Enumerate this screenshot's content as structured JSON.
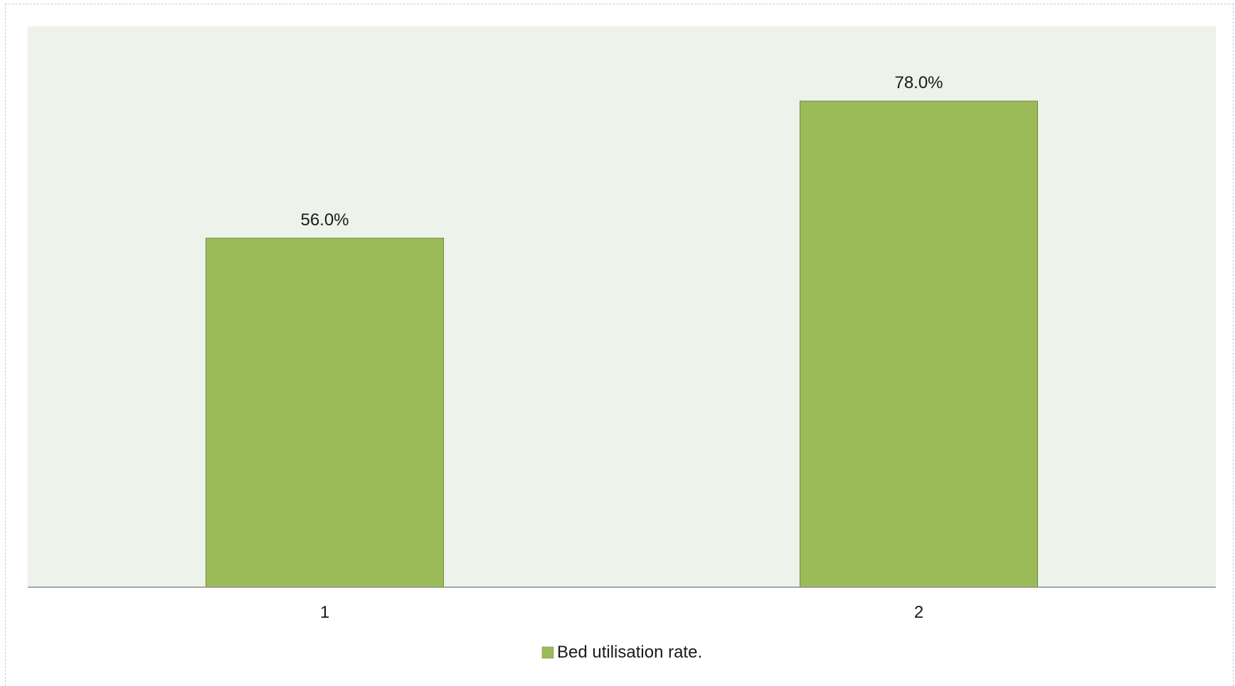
{
  "chart_data": {
    "type": "bar",
    "categories": [
      "1",
      "2"
    ],
    "series": [
      {
        "name": "Bed utilisation rate.",
        "values": [
          56.0,
          78.0
        ],
        "data_labels": [
          "56.0%",
          "78.0%"
        ],
        "color": "#9bbb59"
      }
    ],
    "ylim": [
      0,
      90
    ],
    "grid": false,
    "legend": "bottom",
    "colors": {
      "plot_background": "#edf2ea",
      "bar_fill": "#9bbb59",
      "bar_stroke": "#71893f",
      "axis": "#8c8c8c"
    }
  }
}
